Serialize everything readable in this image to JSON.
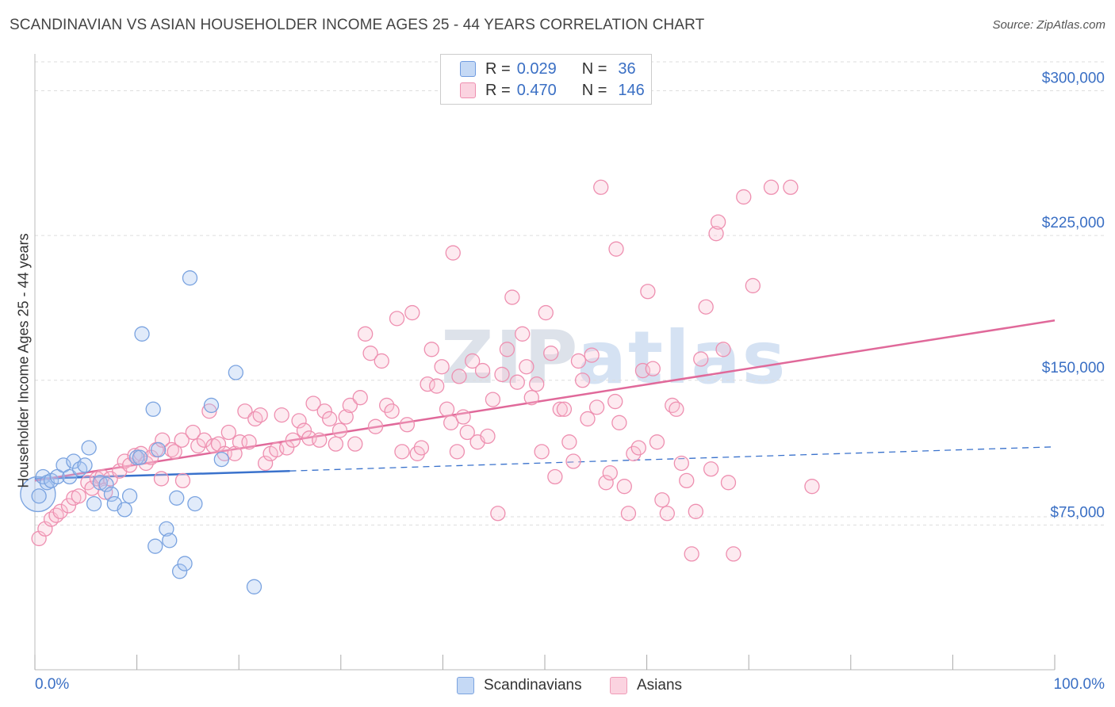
{
  "title": "SCANDINAVIAN VS ASIAN HOUSEHOLDER INCOME AGES 25 - 44 YEARS CORRELATION CHART",
  "source": "Source: ZipAtlas.com",
  "watermark": {
    "part1": "ZIP",
    "part2": "atlas"
  },
  "legend": {
    "rows": [
      {
        "r_label": "R =",
        "r_value": "0.029",
        "n_label": "N =",
        "n_value": "36",
        "color": "#a9c6f0",
        "border": "#6f9be0"
      },
      {
        "r_label": "R =",
        "r_value": "0.470",
        "n_label": "N =",
        "n_value": "146",
        "color": "#f9c4d5",
        "border": "#ee8fb0"
      }
    ]
  },
  "bottom_legend": [
    {
      "label": "Scandinavians",
      "color": "#c5d9f5",
      "border": "#7aa3e0"
    },
    {
      "label": "Asians",
      "color": "#fbd3e0",
      "border": "#ef9cb8"
    }
  ],
  "chart_data": {
    "type": "scatter",
    "title": "SCANDINAVIAN VS ASIAN HOUSEHOLDER INCOME AGES 25 - 44 YEARS CORRELATION CHART",
    "xlabel": "",
    "ylabel": "Householder Income Ages 25 - 44 years",
    "xlim": [
      0,
      100
    ],
    "ylim": [
      0,
      315000
    ],
    "x_tick_labels": [
      "0.0%",
      "100.0%"
    ],
    "y_ticks": [
      75000,
      150000,
      225000,
      300000
    ],
    "y_tick_labels": [
      "$75,000",
      "$150,000",
      "$225,000",
      "$300,000"
    ],
    "grid": "horizontal dashed",
    "legend_position": "top-center",
    "colors": {
      "scandinavian": "#6f9be0",
      "asian": "#ee8fb0",
      "scandinavian_line": "#3a72cc",
      "asian_line": "#e0699a"
    },
    "series": [
      {
        "name": "Scandinavians",
        "points": [
          [
            0.3,
            91000
          ],
          [
            0.8,
            100000
          ],
          [
            1.2,
            97000
          ],
          [
            1.6,
            98000
          ],
          [
            2.2,
            100000
          ],
          [
            2.8,
            106000
          ],
          [
            3.4,
            100000
          ],
          [
            3.8,
            108000
          ],
          [
            4.4,
            104000
          ],
          [
            4.9,
            106000
          ],
          [
            5.3,
            115000
          ],
          [
            5.8,
            86000
          ],
          [
            6.4,
            97000
          ],
          [
            7.0,
            96000
          ],
          [
            7.5,
            91000
          ],
          [
            7.8,
            86000
          ],
          [
            8.8,
            83000
          ],
          [
            9.3,
            90000
          ],
          [
            10.0,
            110000
          ],
          [
            10.3,
            110000
          ],
          [
            10.5,
            174000
          ],
          [
            11.6,
            135000
          ],
          [
            12.1,
            114000
          ],
          [
            12.9,
            73000
          ],
          [
            11.8,
            64000
          ],
          [
            13.2,
            67000
          ],
          [
            13.9,
            89000
          ],
          [
            14.2,
            51000
          ],
          [
            14.7,
            55000
          ],
          [
            15.2,
            203000
          ],
          [
            15.7,
            86000
          ],
          [
            17.3,
            137000
          ],
          [
            18.3,
            109000
          ],
          [
            19.7,
            154000
          ],
          [
            21.5,
            43000
          ],
          [
            0.4,
            90000
          ]
        ]
      },
      {
        "name": "Asians",
        "points": [
          [
            0.4,
            68000
          ],
          [
            1.0,
            73000
          ],
          [
            1.6,
            78000
          ],
          [
            2.1,
            80000
          ],
          [
            2.5,
            82000
          ],
          [
            3.3,
            85000
          ],
          [
            3.8,
            89000
          ],
          [
            4.3,
            90000
          ],
          [
            5.2,
            97000
          ],
          [
            5.6,
            94000
          ],
          [
            6.1,
            99000
          ],
          [
            6.6,
            100000
          ],
          [
            6.9,
            92000
          ],
          [
            7.4,
            99000
          ],
          [
            8.3,
            103000
          ],
          [
            8.8,
            108000
          ],
          [
            9.3,
            106000
          ],
          [
            9.8,
            111000
          ],
          [
            10.4,
            112000
          ],
          [
            10.9,
            107000
          ],
          [
            11.4,
            110000
          ],
          [
            11.9,
            114000
          ],
          [
            12.4,
            99000
          ],
          [
            12.5,
            119000
          ],
          [
            13.4,
            114000
          ],
          [
            13.7,
            113000
          ],
          [
            14.4,
            119000
          ],
          [
            14.5,
            98000
          ],
          [
            15.5,
            123000
          ],
          [
            16.0,
            116000
          ],
          [
            16.6,
            119000
          ],
          [
            17.1,
            134000
          ],
          [
            17.5,
            116000
          ],
          [
            18.0,
            117000
          ],
          [
            18.6,
            112000
          ],
          [
            19.0,
            123000
          ],
          [
            19.6,
            112000
          ],
          [
            20.1,
            118000
          ],
          [
            20.6,
            134000
          ],
          [
            21.0,
            118000
          ],
          [
            21.6,
            130000
          ],
          [
            22.1,
            132000
          ],
          [
            22.6,
            107000
          ],
          [
            23.1,
            112000
          ],
          [
            23.7,
            114000
          ],
          [
            24.2,
            132000
          ],
          [
            24.7,
            115000
          ],
          [
            25.3,
            119000
          ],
          [
            25.9,
            129000
          ],
          [
            26.4,
            124000
          ],
          [
            26.9,
            120000
          ],
          [
            27.3,
            138000
          ],
          [
            27.9,
            119000
          ],
          [
            28.4,
            134000
          ],
          [
            28.9,
            130000
          ],
          [
            29.5,
            117000
          ],
          [
            29.9,
            124000
          ],
          [
            30.5,
            131000
          ],
          [
            30.9,
            137000
          ],
          [
            31.4,
            117000
          ],
          [
            31.9,
            141000
          ],
          [
            32.4,
            174000
          ],
          [
            32.9,
            164000
          ],
          [
            33.4,
            126000
          ],
          [
            34.0,
            160000
          ],
          [
            34.5,
            137000
          ],
          [
            35.0,
            134000
          ],
          [
            35.5,
            182000
          ],
          [
            36.0,
            113000
          ],
          [
            36.5,
            127000
          ],
          [
            37.0,
            185000
          ],
          [
            37.5,
            112000
          ],
          [
            37.9,
            115000
          ],
          [
            38.5,
            148000
          ],
          [
            38.9,
            166000
          ],
          [
            39.4,
            147000
          ],
          [
            39.9,
            157000
          ],
          [
            40.4,
            135000
          ],
          [
            40.8,
            128000
          ],
          [
            41.4,
            113000
          ],
          [
            41.6,
            152000
          ],
          [
            42.0,
            131000
          ],
          [
            42.4,
            123000
          ],
          [
            42.9,
            160000
          ],
          [
            43.4,
            118000
          ],
          [
            43.9,
            155000
          ],
          [
            44.4,
            121000
          ],
          [
            44.9,
            140000
          ],
          [
            45.4,
            81000
          ],
          [
            45.8,
            153000
          ],
          [
            46.3,
            166000
          ],
          [
            46.8,
            193000
          ],
          [
            47.3,
            149000
          ],
          [
            47.8,
            174000
          ],
          [
            48.2,
            157000
          ],
          [
            48.7,
            141000
          ],
          [
            49.2,
            148000
          ],
          [
            49.7,
            113000
          ],
          [
            50.1,
            185000
          ],
          [
            50.6,
            164000
          ],
          [
            51.0,
            100000
          ],
          [
            51.5,
            135000
          ],
          [
            51.9,
            135000
          ],
          [
            52.4,
            118000
          ],
          [
            52.8,
            108000
          ],
          [
            53.3,
            160000
          ],
          [
            53.7,
            150000
          ],
          [
            54.2,
            130000
          ],
          [
            54.6,
            163000
          ],
          [
            55.1,
            136000
          ],
          [
            55.5,
            250000
          ],
          [
            56.0,
            97000
          ],
          [
            56.4,
            102000
          ],
          [
            56.9,
            139000
          ],
          [
            57.3,
            128000
          ],
          [
            57.8,
            95000
          ],
          [
            58.2,
            81000
          ],
          [
            58.7,
            112000
          ],
          [
            59.2,
            115000
          ],
          [
            59.6,
            155000
          ],
          [
            60.1,
            196000
          ],
          [
            60.6,
            156000
          ],
          [
            61.0,
            118000
          ],
          [
            61.5,
            88000
          ],
          [
            62.0,
            81000
          ],
          [
            62.5,
            137000
          ],
          [
            62.9,
            135000
          ],
          [
            63.4,
            107000
          ],
          [
            63.9,
            98000
          ],
          [
            64.4,
            60000
          ],
          [
            64.8,
            82000
          ],
          [
            65.3,
            161000
          ],
          [
            65.8,
            188000
          ],
          [
            66.3,
            104000
          ],
          [
            66.8,
            226000
          ],
          [
            67.0,
            232000
          ],
          [
            67.5,
            166000
          ],
          [
            68.0,
            97000
          ],
          [
            68.5,
            60000
          ],
          [
            69.5,
            245000
          ],
          [
            70.4,
            199000
          ],
          [
            72.2,
            250000
          ],
          [
            74.1,
            250000
          ],
          [
            76.2,
            95000
          ],
          [
            57.0,
            218000
          ],
          [
            41.0,
            216000
          ]
        ]
      }
    ],
    "trend_lines": [
      {
        "series": "Scandinavians",
        "x": [
          0,
          25,
          100
        ],
        "y": [
          99000,
          103000,
          115500
        ],
        "solid_until": 25
      },
      {
        "series": "Asians",
        "x": [
          0,
          100
        ],
        "y": [
          98000,
          181000
        ]
      }
    ]
  }
}
